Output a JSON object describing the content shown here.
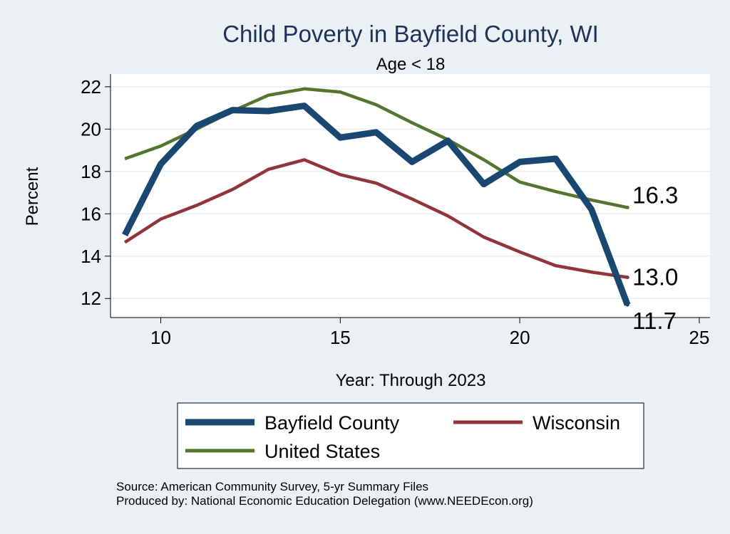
{
  "chart_data": {
    "type": "line",
    "title": "Child Poverty in Bayfield County, WI",
    "subtitle": "Age < 18",
    "xlabel": "Year: Through 2023",
    "ylabel": "Percent",
    "xlim": [
      8.6,
      25.3
    ],
    "ylim": [
      11.1,
      22.6
    ],
    "x_ticks": [
      10,
      15,
      20,
      25
    ],
    "y_ticks": [
      12,
      14,
      16,
      18,
      20,
      22
    ],
    "grid": true,
    "legend_position": "bottom",
    "series": [
      {
        "name": "Bayfield County",
        "color": "#1a476f",
        "x": [
          9,
          10,
          11,
          12,
          13,
          14,
          15,
          16,
          17,
          18,
          19,
          20,
          21,
          22,
          23
        ],
        "values": [
          15.0,
          18.35,
          20.15,
          20.9,
          20.85,
          21.1,
          19.6,
          19.85,
          18.45,
          19.45,
          17.4,
          18.45,
          18.6,
          16.2,
          11.7
        ],
        "end_label": "11.7"
      },
      {
        "name": "Wisconsin",
        "color": "#90353b",
        "x": [
          9,
          10,
          11,
          12,
          13,
          14,
          15,
          16,
          17,
          18,
          19,
          20,
          21,
          22,
          23
        ],
        "values": [
          14.65,
          15.75,
          16.4,
          17.15,
          18.1,
          18.55,
          17.85,
          17.45,
          16.7,
          15.9,
          14.9,
          14.2,
          13.55,
          13.25,
          13.0
        ],
        "end_label": "13.0"
      },
      {
        "name": "United States",
        "color": "#55752f",
        "x": [
          9,
          10,
          11,
          12,
          13,
          14,
          15,
          16,
          17,
          18,
          19,
          20,
          21,
          22,
          23
        ],
        "values": [
          18.6,
          19.2,
          20.0,
          20.85,
          21.6,
          21.9,
          21.75,
          21.15,
          20.3,
          19.5,
          18.55,
          17.5,
          17.05,
          16.65,
          16.3
        ],
        "end_label": "16.3"
      }
    ],
    "legend": [
      "Bayfield County",
      "Wisconsin",
      "United States"
    ],
    "notes": [
      "Source: American Community Survey, 5-yr Summary Files",
      "Produced by: National Economic Education Delegation (www.NEEDEcon.org)"
    ]
  }
}
